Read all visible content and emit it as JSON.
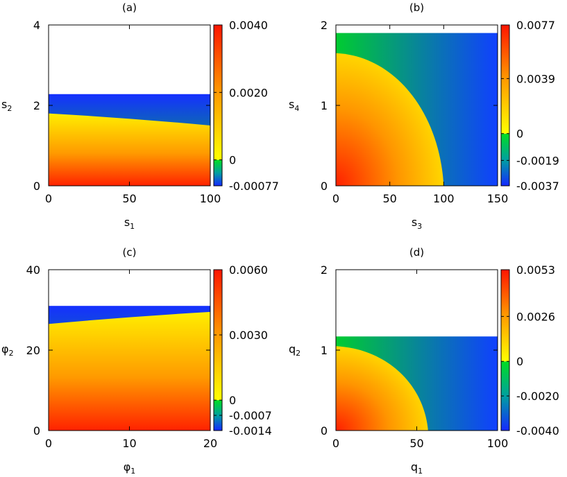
{
  "chart_data": [
    {
      "panel": "(a)",
      "type": "heatmap",
      "title": "(a)",
      "xlabel": "s",
      "xlabel_sub": "1",
      "ylabel": "s",
      "ylabel_sub": "2",
      "xlim": [
        0,
        100
      ],
      "ylim": [
        0,
        4
      ],
      "xticks": [
        "0",
        "50",
        "100"
      ],
      "xtick_values": [
        0,
        50,
        100
      ],
      "yticks": [
        "0",
        "2",
        "4"
      ],
      "ytick_values": [
        0,
        2,
        4
      ],
      "colorbar": {
        "range": [
          -0.00077,
          0.004
        ],
        "ticks": [
          "-0.00077",
          "0",
          "0.0020",
          "0.0040"
        ],
        "tick_values": [
          -0.00077,
          0,
          0.002,
          0.004
        ]
      },
      "region": {
        "kind": "horizontal",
        "y_max": 2.28,
        "zero_y_at_xmin": 1.8,
        "zero_y_at_xmax": 1.5
      }
    },
    {
      "panel": "(b)",
      "type": "heatmap",
      "title": "(b)",
      "xlabel": "s",
      "xlabel_sub": "3",
      "ylabel": "s",
      "ylabel_sub": "4",
      "xlim": [
        0,
        150
      ],
      "ylim": [
        0,
        2
      ],
      "xticks": [
        "0",
        "50",
        "100",
        "150"
      ],
      "xtick_values": [
        0,
        50,
        100,
        150
      ],
      "yticks": [
        "0",
        "1",
        "2"
      ],
      "ytick_values": [
        0,
        1,
        2
      ],
      "colorbar": {
        "range": [
          -0.0037,
          0.0077
        ],
        "ticks": [
          "-0.0037",
          "-0.0019",
          "0",
          "0.0039",
          "0.0077"
        ],
        "tick_values": [
          -0.0037,
          -0.0019,
          0,
          0.0039,
          0.0077
        ]
      },
      "region": {
        "kind": "quarter",
        "y_max": 1.9,
        "zero_x_intercept": 100,
        "zero_y_intercept": 1.65
      }
    },
    {
      "panel": "(c)",
      "type": "heatmap",
      "title": "(c)",
      "xlabel": "φ",
      "xlabel_sub": "1",
      "ylabel": "φ",
      "ylabel_sub": "2",
      "xlim": [
        0,
        20
      ],
      "ylim": [
        0,
        40
      ],
      "xticks": [
        "0",
        "10",
        "20"
      ],
      "xtick_values": [
        0,
        10,
        20
      ],
      "yticks": [
        "0",
        "20",
        "40"
      ],
      "ytick_values": [
        0,
        20,
        40
      ],
      "colorbar": {
        "range": [
          -0.0014,
          0.006
        ],
        "ticks": [
          "-0.0014",
          "-0.0007",
          "0",
          "0.0030",
          "0.0060"
        ],
        "tick_values": [
          -0.0014,
          -0.0007,
          0,
          0.003,
          0.006
        ]
      },
      "region": {
        "kind": "horizontal_rising",
        "y_max": 31,
        "zero_y_at_xmin": 26.5,
        "zero_y_at_xmax": 29.5
      }
    },
    {
      "panel": "(d)",
      "type": "heatmap",
      "title": "(d)",
      "xlabel": "q",
      "xlabel_sub": "1",
      "ylabel": "q",
      "ylabel_sub": "2",
      "xlim": [
        0,
        100
      ],
      "ylim": [
        0,
        2
      ],
      "xticks": [
        "0",
        "50",
        "100"
      ],
      "xtick_values": [
        0,
        50,
        100
      ],
      "yticks": [
        "0",
        "1",
        "2"
      ],
      "ytick_values": [
        0,
        1,
        2
      ],
      "colorbar": {
        "range": [
          -0.004,
          0.0053
        ],
        "ticks": [
          "-0.0040",
          "-0.0020",
          "0",
          "0.0026",
          "0.0053"
        ],
        "tick_values": [
          -0.004,
          -0.002,
          0,
          0.0026,
          0.0053
        ]
      },
      "region": {
        "kind": "quarter",
        "y_max": 1.17,
        "zero_x_intercept": 57,
        "zero_y_intercept": 1.05
      }
    }
  ]
}
